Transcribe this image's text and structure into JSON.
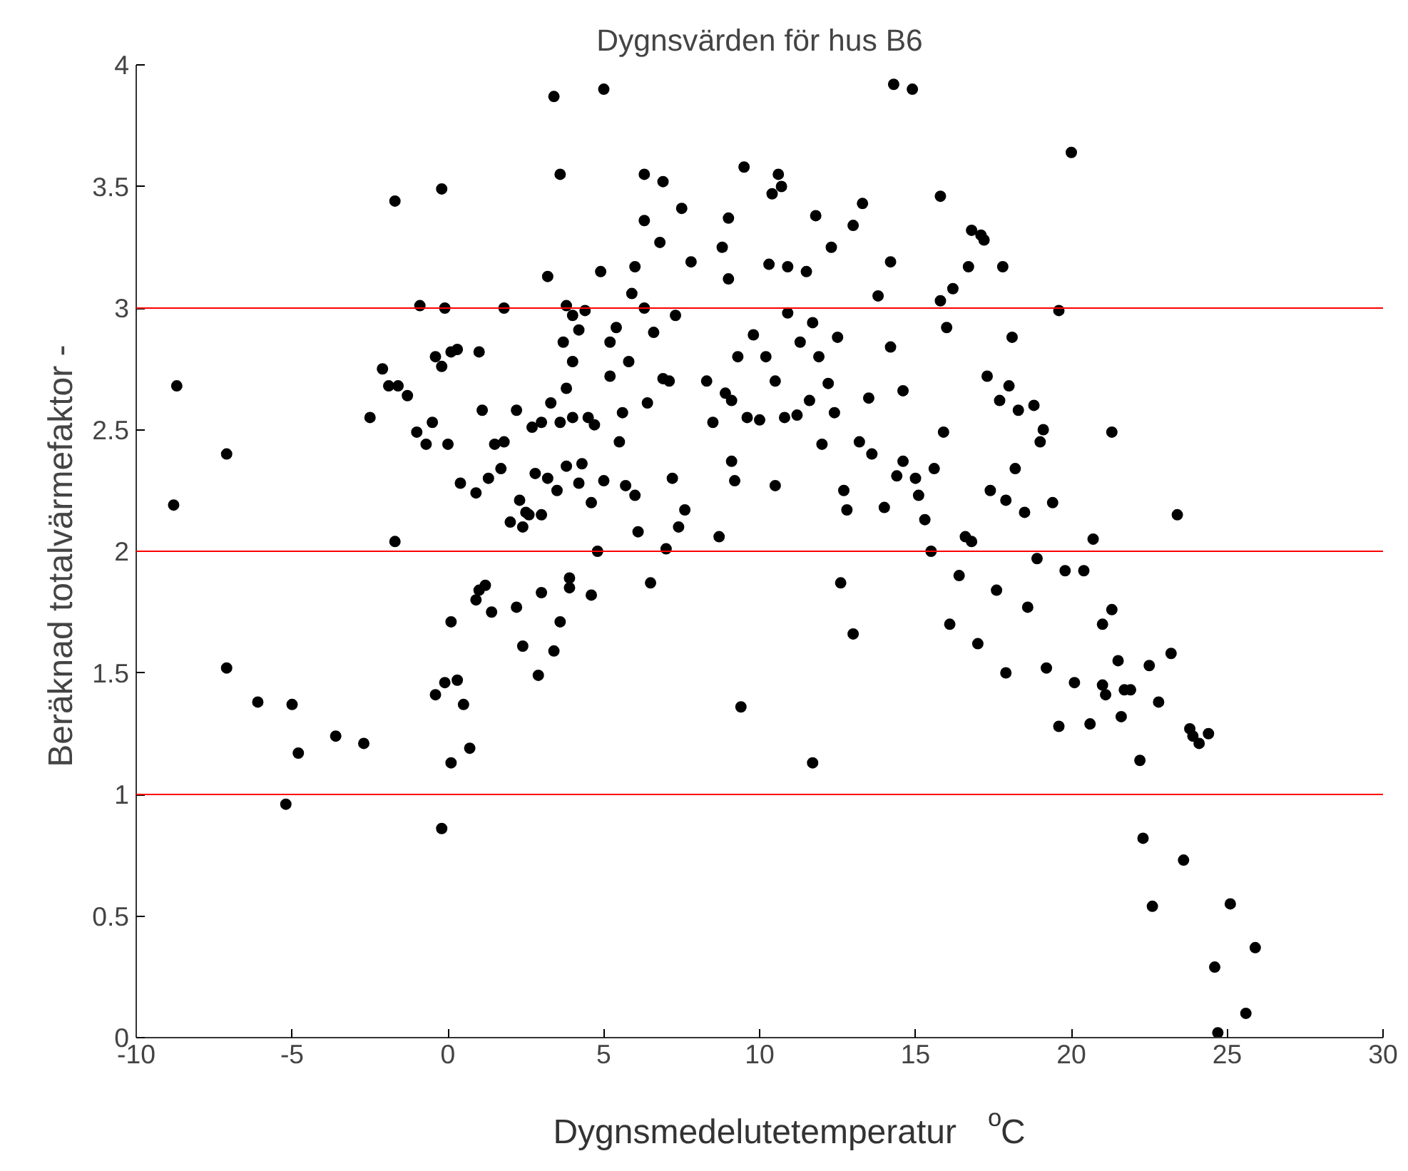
{
  "chart_data": {
    "type": "scatter",
    "title": "Dygnsvärden för hus B6",
    "xlabel": "Dygnsmedelutetemperatur  $^{o}$C",
    "ylabel": "Beräknad totalvärmefaktor  -",
    "xlim": [
      -10,
      30
    ],
    "xticks": [
      -10,
      -5,
      0,
      5,
      10,
      15,
      20,
      25,
      30
    ],
    "ylim": [
      0,
      4
    ],
    "yticks": [
      0,
      0.5,
      1,
      1.5,
      2,
      2.5,
      3,
      3.5,
      4
    ],
    "grid": false,
    "marker": "circle",
    "ref_lines": [
      {
        "axis": "y",
        "value": 1,
        "color": "#ff0000"
      },
      {
        "axis": "y",
        "value": 2,
        "color": "#ff0000"
      },
      {
        "axis": "y",
        "value": 3,
        "color": "#ff0000"
      }
    ],
    "series": [
      {
        "color": "#000000",
        "x": [
          -8.8,
          -8.7,
          -7.1,
          -7.1,
          -6.1,
          -5.2,
          -5.0,
          -4.8,
          -3.6,
          -2.7,
          -2.5,
          -2.1,
          -1.9,
          -1.7,
          -1.7,
          -1.6,
          -1.3,
          -1.0,
          -0.9,
          -0.7,
          -0.5,
          -0.4,
          -0.4,
          -0.2,
          -0.2,
          -0.1,
          -0.1,
          -0.2,
          0,
          0.1,
          0.1,
          0.1,
          0.3,
          0.4,
          0.3,
          0.5,
          0.7,
          0.9,
          0.9,
          1.0,
          1.0,
          1.1,
          1.2,
          1.3,
          1.4,
          1.5,
          1.7,
          1.8,
          1.8,
          2.0,
          2.2,
          2.2,
          2.3,
          2.4,
          2.4,
          2.5,
          2.6,
          2.7,
          2.8,
          2.9,
          3.0,
          3.0,
          3.0,
          3.2,
          3.2,
          3.3,
          3.4,
          3.4,
          3.5,
          3.6,
          3.6,
          3.6,
          3.7,
          3.8,
          3.8,
          3.8,
          3.9,
          3.9,
          4.0,
          4.0,
          4.0,
          4.2,
          4.2,
          4.3,
          4.4,
          4.5,
          4.6,
          4.6,
          4.7,
          4.8,
          4.9,
          5.0,
          5.0,
          5.2,
          5.2,
          5.4,
          5.5,
          5.6,
          5.7,
          5.8,
          5.9,
          6.0,
          6.0,
          6.1,
          6.3,
          6.3,
          6.3,
          6.4,
          6.6,
          6.5,
          6.8,
          6.9,
          6.9,
          7.0,
          7.1,
          7.2,
          7.3,
          7.4,
          7.5,
          7.6,
          7.8,
          8.3,
          8.5,
          8.7,
          8.8,
          8.9,
          9.0,
          9.0,
          9.1,
          9.1,
          9.2,
          9.3,
          9.4,
          9.5,
          9.6,
          9.8,
          10.0,
          10.2,
          10.3,
          10.4,
          10.5,
          10.5,
          10.6,
          10.7,
          10.8,
          10.9,
          10.9,
          11.2,
          11.3,
          11.5,
          11.6,
          11.7,
          11.7,
          11.8,
          11.9,
          12.0,
          12.2,
          12.3,
          12.4,
          12.5,
          12.6,
          12.7,
          12.8,
          13.0,
          13.0,
          13.3,
          13.2,
          13.5,
          13.6,
          13.8,
          14.0,
          14.2,
          14.3,
          14.2,
          14.4,
          14.6,
          14.9,
          15.0,
          15.1,
          15.3,
          15.5,
          15.6,
          15.8,
          15.8,
          15.9,
          16.0,
          16.1,
          16.2,
          16.4,
          16.7,
          16.8,
          16.8,
          17.0,
          17.2,
          17.1,
          17.3,
          17.4,
          17.6,
          17.7,
          17.8,
          17.9,
          17.9,
          18.0,
          18.1,
          18.3,
          18.2,
          18.5,
          18.6,
          18.8,
          18.9,
          19.0,
          19.1,
          19.2,
          19.4,
          19.6,
          19.6,
          19.8,
          20.0,
          20.1,
          20.4,
          20.6,
          20.7,
          21.0,
          21.0,
          21.1,
          21.3,
          21.3,
          21.5,
          21.7,
          21.9,
          22.2,
          22.3,
          22.6,
          22.8,
          23.2,
          23.4,
          23.6,
          23.8,
          24.1,
          24.4,
          24.6,
          24.7,
          25.1,
          25.6,
          25.9,
          23.9,
          22.5,
          21.6,
          16.6,
          14.6
        ],
        "values": [
          2.19,
          2.68,
          2.4,
          1.52,
          1.38,
          0.96,
          1.37,
          1.17,
          1.24,
          1.21,
          2.55,
          2.75,
          2.68,
          2.04,
          3.44,
          2.68,
          2.64,
          2.49,
          3.01,
          2.44,
          2.53,
          2.8,
          1.41,
          3.49,
          2.76,
          3.0,
          1.46,
          0.86,
          2.44,
          2.82,
          1.13,
          1.71,
          2.83,
          2.28,
          1.47,
          1.37,
          1.19,
          2.24,
          1.8,
          2.82,
          1.84,
          2.58,
          1.86,
          2.3,
          1.75,
          2.44,
          2.34,
          2.45,
          3.0,
          2.12,
          2.58,
          1.77,
          2.21,
          1.61,
          2.1,
          2.16,
          2.15,
          2.51,
          2.32,
          1.49,
          2.15,
          2.53,
          1.83,
          3.13,
          2.3,
          2.61,
          3.87,
          1.59,
          2.25,
          3.55,
          2.53,
          1.71,
          2.86,
          2.67,
          3.01,
          2.35,
          1.89,
          1.85,
          2.55,
          2.78,
          2.97,
          2.91,
          2.28,
          2.36,
          2.99,
          2.55,
          2.2,
          1.82,
          2.52,
          2.0,
          3.15,
          3.9,
          2.29,
          2.86,
          2.72,
          2.92,
          2.45,
          2.57,
          2.27,
          2.78,
          3.06,
          3.17,
          2.23,
          2.08,
          3.0,
          3.36,
          3.55,
          2.61,
          2.9,
          1.87,
          3.27,
          3.52,
          2.71,
          2.01,
          2.7,
          2.3,
          2.97,
          2.1,
          3.41,
          2.17,
          3.19,
          2.7,
          2.53,
          2.06,
          3.25,
          2.65,
          3.37,
          3.12,
          2.62,
          2.37,
          2.29,
          2.8,
          1.36,
          3.58,
          2.55,
          2.89,
          2.54,
          2.8,
          3.18,
          3.47,
          2.7,
          2.27,
          3.55,
          3.5,
          2.55,
          3.17,
          2.98,
          2.56,
          2.86,
          3.15,
          2.62,
          2.94,
          1.13,
          3.38,
          2.8,
          2.44,
          2.69,
          3.25,
          2.57,
          2.88,
          1.87,
          2.25,
          2.17,
          3.34,
          1.66,
          3.43,
          2.45,
          2.63,
          2.4,
          3.05,
          2.18,
          3.19,
          3.92,
          2.84,
          2.31,
          2.66,
          3.9,
          2.3,
          2.23,
          2.13,
          2.0,
          2.34,
          3.46,
          3.03,
          2.49,
          2.92,
          1.7,
          3.08,
          1.9,
          3.17,
          3.32,
          2.04,
          1.62,
          3.28,
          3.3,
          2.72,
          2.25,
          1.84,
          2.62,
          3.17,
          2.21,
          1.5,
          2.68,
          2.88,
          2.58,
          2.34,
          2.16,
          1.77,
          2.6,
          1.97,
          2.45,
          2.5,
          1.52,
          2.2,
          2.99,
          1.28,
          1.92,
          3.64,
          1.46,
          1.92,
          1.29,
          2.05,
          1.7,
          1.45,
          1.41,
          2.49,
          1.76,
          1.55,
          1.43,
          1.43,
          1.14,
          0.82,
          0.54,
          1.38,
          1.58,
          2.15,
          0.73,
          1.27,
          1.21,
          1.25,
          0.29,
          0.02,
          0.55,
          0.1,
          0.37,
          1.24,
          1.53,
          1.32,
          2.06,
          2.37
        ]
      }
    ]
  }
}
